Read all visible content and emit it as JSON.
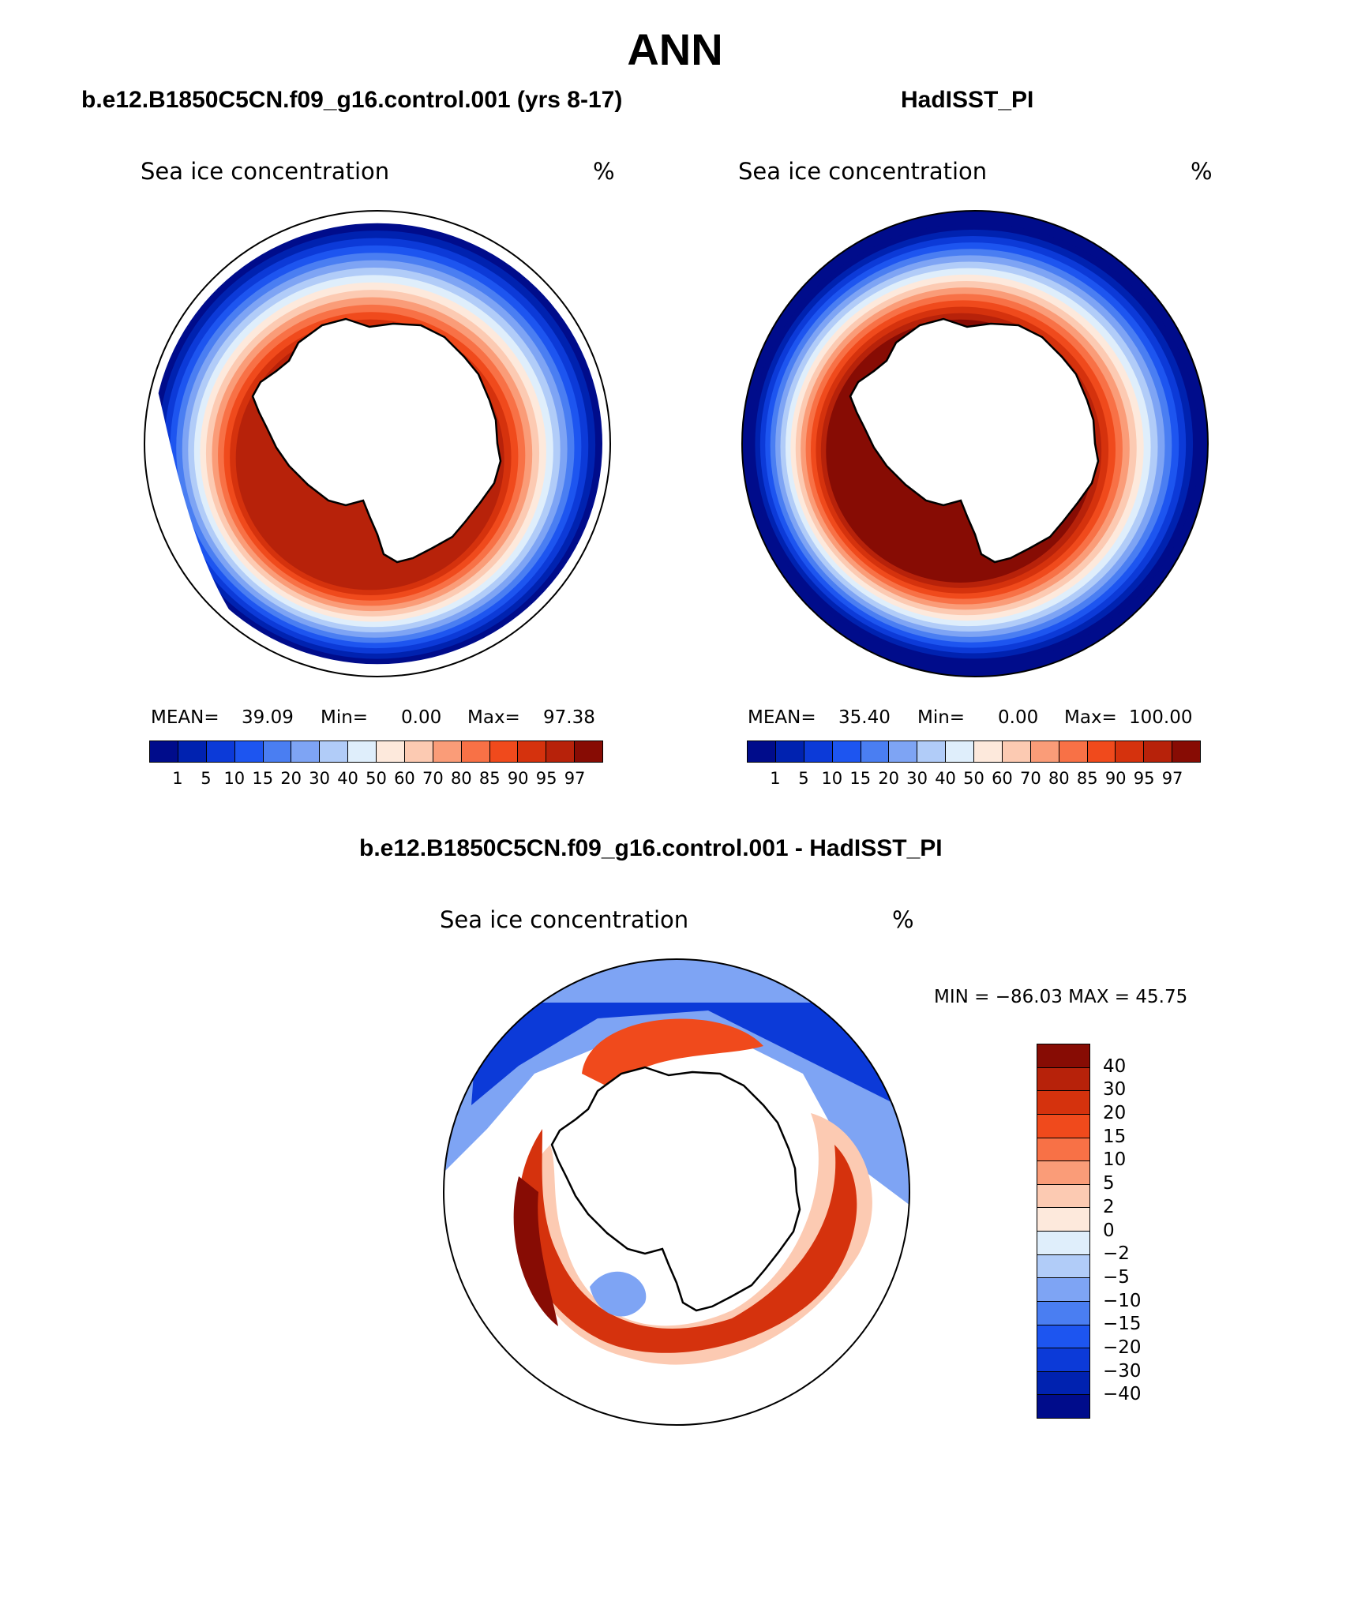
{
  "main_title": "ANN",
  "panels": [
    {
      "heading": "b.e12.B1850C5CN.f09_g16.control.001 (yrs 8-17)",
      "variable": "Sea ice concentration",
      "units": "%",
      "stats": {
        "mean_label": "MEAN=",
        "mean": "39.09",
        "min_label": "Min=",
        "min": "0.00",
        "max_label": "Max=",
        "max": "97.38"
      },
      "ice_max_level": 95
    },
    {
      "heading": "HadISST_PI",
      "variable": "Sea ice concentration",
      "units": "%",
      "stats": {
        "mean_label": "MEAN=",
        "mean": "35.40",
        "min_label": "Min=",
        "min": "0.00",
        "max_label": "Max=",
        "max": "100.00"
      },
      "ice_max_level": 97
    }
  ],
  "levels_labels": [
    "1",
    "5",
    "10",
    "15",
    "20",
    "30",
    "40",
    "50",
    "60",
    "70",
    "80",
    "85",
    "90",
    "95",
    "97"
  ],
  "level_colors": [
    "#000c8b",
    "#0022b0",
    "#0c3ad8",
    "#1d55f0",
    "#4a7ef2",
    "#7ea4f4",
    "#b1ccf8",
    "#dfeefb",
    "#fde9dc",
    "#fccab2",
    "#fa9c78",
    "#f87146",
    "#f04a1c",
    "#d5320d",
    "#b7220a",
    "#870c04"
  ],
  "difference": {
    "heading": "b.e12.B1850C5CN.f09_g16.control.001 - HadISST_PI",
    "variable": "Sea ice concentration",
    "units": "%",
    "minmax_text": "MIN = −86.03 MAX =   45.75",
    "levels_labels": [
      "40",
      "30",
      "20",
      "15",
      "10",
      "5",
      "2",
      "0",
      "−2",
      "−5",
      "−10",
      "−15",
      "−20",
      "−30",
      "−40"
    ],
    "colors_top_to_bottom": [
      "#870c04",
      "#b7220a",
      "#d5320d",
      "#f04a1c",
      "#f87146",
      "#fa9c78",
      "#fccab2",
      "#fde9dc",
      "#dfeefb",
      "#b1ccf8",
      "#7ea4f4",
      "#4a7ef2",
      "#1d55f0",
      "#0c3ad8",
      "#0022b0",
      "#000c8b"
    ]
  }
}
